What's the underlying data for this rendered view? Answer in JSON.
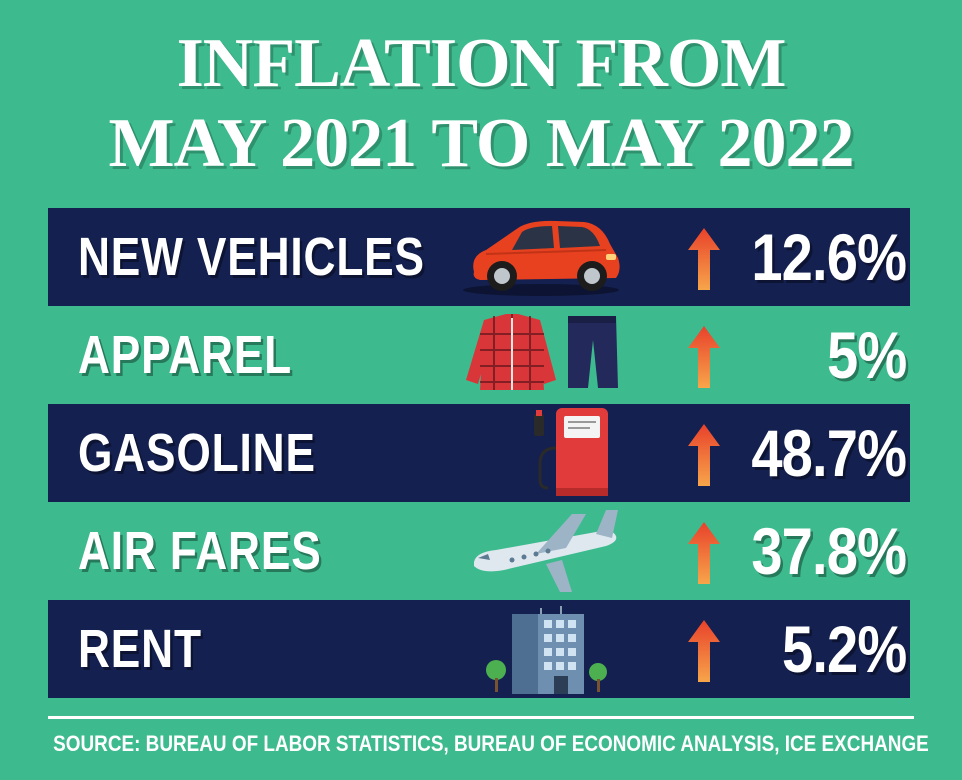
{
  "title": {
    "line1": "INFLATION FROM",
    "line2": "MAY 2021 TO MAY 2022"
  },
  "chart_data": {
    "type": "table",
    "rows": [
      {
        "label": "NEW VEHICLES",
        "value": 12.6,
        "value_label": "12.6%",
        "direction": "up",
        "icon": "car-icon"
      },
      {
        "label": "APPAREL",
        "value": 5,
        "value_label": "5%",
        "direction": "up",
        "icon": "clothing-icon"
      },
      {
        "label": "GASOLINE",
        "value": 48.7,
        "value_label": "48.7%",
        "direction": "up",
        "icon": "fuel-pump-icon"
      },
      {
        "label": "AIR FARES",
        "value": 37.8,
        "value_label": "37.8%",
        "direction": "up",
        "icon": "airplane-icon"
      },
      {
        "label": "RENT",
        "value": 5.2,
        "value_label": "5.2%",
        "direction": "up",
        "icon": "building-icon"
      }
    ]
  },
  "source": "SOURCE: BUREAU OF LABOR STATISTICS, BUREAU OF ECONOMIC ANALYSIS, ICE EXCHANGE",
  "colors": {
    "background": "#3dbb8e",
    "band": "#14204f",
    "text": "#ffffff",
    "arrow_top": "#e8412b",
    "arrow_bottom": "#f7a54a"
  }
}
